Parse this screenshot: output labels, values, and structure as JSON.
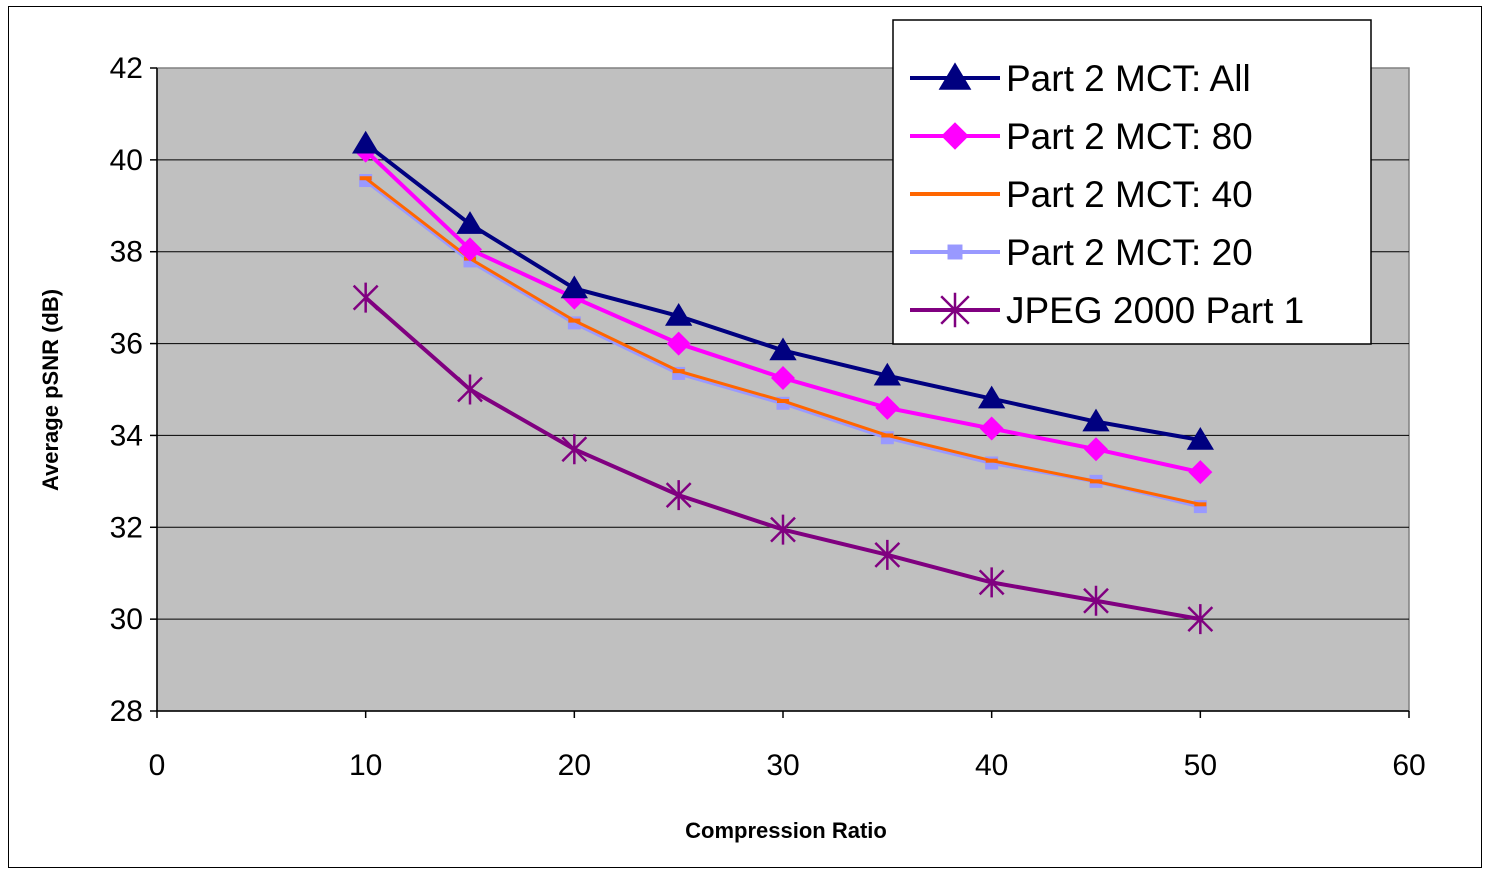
{
  "chart_data": {
    "type": "line",
    "title": "",
    "xlabel": "Compression Ratio",
    "ylabel": "Average pSNR (dB)",
    "xlim": [
      0,
      60
    ],
    "ylim": [
      28,
      42
    ],
    "xticks": [
      0,
      10,
      20,
      30,
      40,
      50,
      60
    ],
    "yticks": [
      28,
      30,
      32,
      34,
      36,
      38,
      40,
      42
    ],
    "grid": "horizontal",
    "plot_background": "#c0c0c0",
    "legend_position": "top-right",
    "x": [
      10,
      15,
      20,
      25,
      30,
      35,
      40,
      45,
      50
    ],
    "series": [
      {
        "name": "Part 2 MCT: All",
        "color": "#000080",
        "marker": "triangle",
        "values": [
          40.35,
          38.6,
          37.2,
          36.6,
          35.85,
          35.3,
          34.8,
          34.3,
          33.9
        ]
      },
      {
        "name": "Part 2 MCT: 80",
        "color": "#ff00ff",
        "marker": "diamond",
        "values": [
          40.2,
          38.05,
          37.0,
          36.0,
          35.25,
          34.6,
          34.15,
          33.7,
          33.2
        ]
      },
      {
        "name": "Part 2 MCT: 40",
        "color": "#ff6600",
        "marker": "dash",
        "values": [
          39.6,
          37.85,
          36.5,
          35.4,
          34.75,
          34.0,
          33.45,
          33.0,
          32.5
        ]
      },
      {
        "name": "Part 2 MCT: 20",
        "color": "#9999ff",
        "marker": "square",
        "values": [
          39.55,
          37.8,
          36.45,
          35.35,
          34.7,
          33.95,
          33.4,
          33.0,
          32.45
        ]
      },
      {
        "name": "JPEG 2000 Part 1",
        "color": "#800080",
        "marker": "star",
        "values": [
          37.0,
          35.0,
          33.7,
          32.7,
          31.95,
          31.4,
          30.8,
          30.4,
          30.0
        ]
      }
    ]
  }
}
